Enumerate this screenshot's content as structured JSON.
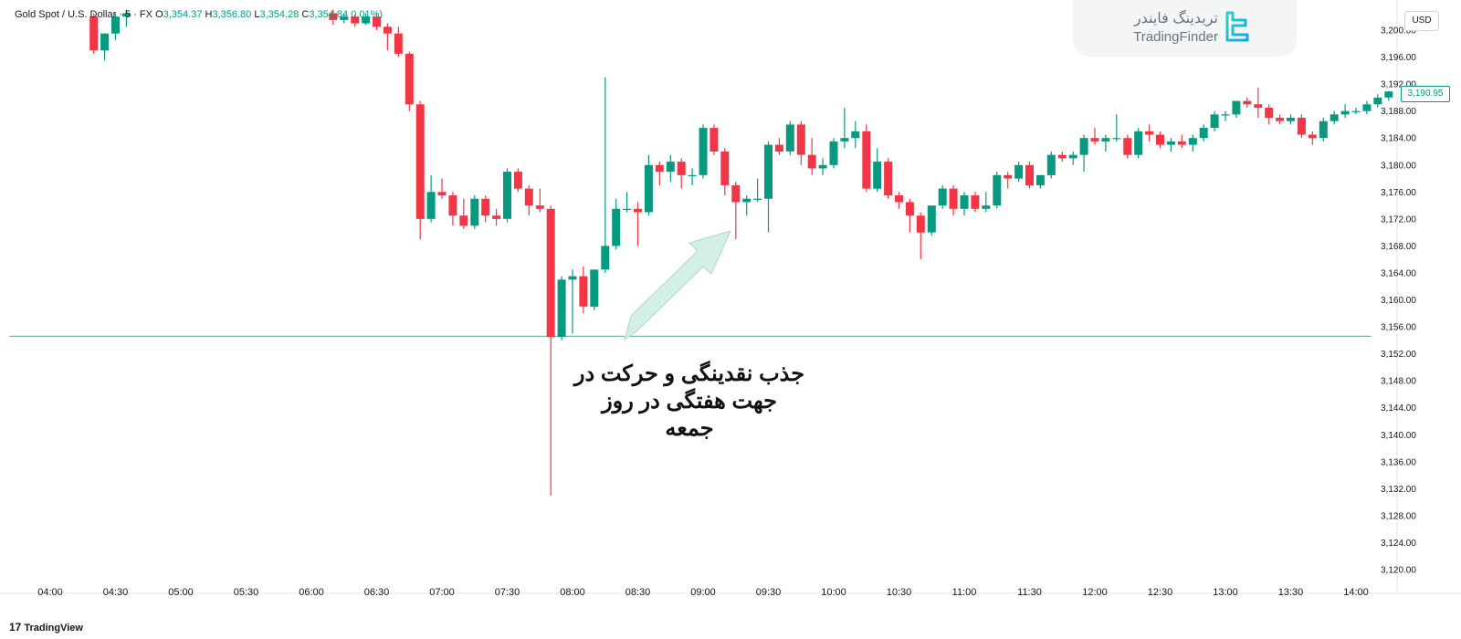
{
  "legend": {
    "symbol": "Gold Spot / U.S. Dollar · 5 · FX",
    "open_label": "O",
    "open": "3,354.37",
    "high_label": "H",
    "high": "3,356.80",
    "low_label": "L",
    "low": "3,354.28",
    "close_label": "C",
    "close": "3,354.84",
    "change": "0.01%)"
  },
  "logo": {
    "text_fa": "تریدینگ فایندر",
    "text_en": "TradingFinder"
  },
  "currency": "USD",
  "last_price": "3,190.95",
  "annotation": {
    "lines": [
      "جذب نقدینگی و حرکت در",
      "جهت هفتگی در روز",
      "جمعه"
    ]
  },
  "brand": {
    "mark": "17",
    "name": "TradingView"
  },
  "colors": {
    "up": "#089981",
    "down": "#f23645",
    "level_line": "#7fb8a4",
    "arrow": "#bfe5dc"
  },
  "chart_data": {
    "type": "candlestick",
    "symbol": "Gold Spot / U.S. Dollar",
    "interval": "5",
    "ylim": [
      3118,
      3202
    ],
    "y_ticks": [
      "3,120.00",
      "3,124.00",
      "3,128.00",
      "3,132.00",
      "3,136.00",
      "3,140.00",
      "3,144.00",
      "3,148.00",
      "3,152.00",
      "3,156.00",
      "3,160.00",
      "3,164.00",
      "3,168.00",
      "3,172.00",
      "3,176.00",
      "3,180.00",
      "3,184.00",
      "3,188.00",
      "3,192.00",
      "3,196.00",
      "3,200.00"
    ],
    "x_ticks": [
      "04:00",
      "04:30",
      "05:00",
      "05:30",
      "06:00",
      "06:30",
      "07:00",
      "07:30",
      "08:00",
      "08:30",
      "09:00",
      "09:30",
      "10:00",
      "10:30",
      "11:00",
      "11:30",
      "12:00",
      "12:30",
      "13:00",
      "13:30",
      "14:00"
    ],
    "horizontal_level": 3154.6,
    "candles": [
      {
        "t": "04:20",
        "o": 3202.0,
        "h": 3202.5,
        "l": 3196.5,
        "c": 3197.0
      },
      {
        "t": "04:25",
        "o": 3197.0,
        "h": 3199.5,
        "l": 3195.5,
        "c": 3199.5
      },
      {
        "t": "04:30",
        "o": 3199.5,
        "h": 3202.5,
        "l": 3198.5,
        "c": 3202.0
      },
      {
        "t": "04:35",
        "o": 3202.0,
        "h": 3203.0,
        "l": 3200.5,
        "c": 3202.5
      },
      {
        "t": "06:10",
        "o": 3202.5,
        "h": 3203.0,
        "l": 3200.8,
        "c": 3201.5
      },
      {
        "t": "06:15",
        "o": 3201.5,
        "h": 3202.5,
        "l": 3201.0,
        "c": 3202.0
      },
      {
        "t": "06:20",
        "o": 3202.0,
        "h": 3202.3,
        "l": 3200.5,
        "c": 3201.0
      },
      {
        "t": "06:25",
        "o": 3201.0,
        "h": 3202.5,
        "l": 3200.8,
        "c": 3202.0
      },
      {
        "t": "06:30",
        "o": 3202.0,
        "h": 3202.5,
        "l": 3200.0,
        "c": 3200.5
      },
      {
        "t": "06:35",
        "o": 3200.5,
        "h": 3201.0,
        "l": 3197.0,
        "c": 3199.5
      },
      {
        "t": "06:40",
        "o": 3199.5,
        "h": 3200.5,
        "l": 3196.0,
        "c": 3196.5
      },
      {
        "t": "06:45",
        "o": 3196.5,
        "h": 3196.8,
        "l": 3188.0,
        "c": 3189.0
      },
      {
        "t": "06:50",
        "o": 3189.0,
        "h": 3189.5,
        "l": 3169.0,
        "c": 3172.0
      },
      {
        "t": "06:55",
        "o": 3172.0,
        "h": 3178.5,
        "l": 3171.5,
        "c": 3176.0
      },
      {
        "t": "07:00",
        "o": 3176.0,
        "h": 3178.0,
        "l": 3175.0,
        "c": 3175.5
      },
      {
        "t": "07:05",
        "o": 3175.5,
        "h": 3176.0,
        "l": 3171.0,
        "c": 3172.5
      },
      {
        "t": "07:10",
        "o": 3172.5,
        "h": 3175.0,
        "l": 3170.5,
        "c": 3171.0
      },
      {
        "t": "07:15",
        "o": 3171.0,
        "h": 3175.5,
        "l": 3170.5,
        "c": 3175.0
      },
      {
        "t": "07:20",
        "o": 3175.0,
        "h": 3175.5,
        "l": 3171.5,
        "c": 3172.5
      },
      {
        "t": "07:25",
        "o": 3172.5,
        "h": 3173.5,
        "l": 3171.0,
        "c": 3172.0
      },
      {
        "t": "07:30",
        "o": 3172.0,
        "h": 3179.5,
        "l": 3171.5,
        "c": 3179.0
      },
      {
        "t": "07:35",
        "o": 3179.0,
        "h": 3179.5,
        "l": 3176.0,
        "c": 3176.5
      },
      {
        "t": "07:40",
        "o": 3176.5,
        "h": 3177.0,
        "l": 3172.5,
        "c": 3174.0
      },
      {
        "t": "07:45",
        "o": 3174.0,
        "h": 3176.5,
        "l": 3173.0,
        "c": 3173.5
      },
      {
        "t": "07:50",
        "o": 3173.5,
        "h": 3174.0,
        "l": 3131.0,
        "c": 3154.5
      },
      {
        "t": "07:55",
        "o": 3154.5,
        "h": 3163.5,
        "l": 3154.0,
        "c": 3163.0
      },
      {
        "t": "08:00",
        "o": 3163.0,
        "h": 3164.5,
        "l": 3155.0,
        "c": 3163.5
      },
      {
        "t": "08:05",
        "o": 3163.5,
        "h": 3165.0,
        "l": 3158.0,
        "c": 3159.0
      },
      {
        "t": "08:10",
        "o": 3159.0,
        "h": 3164.5,
        "l": 3158.5,
        "c": 3164.5
      },
      {
        "t": "08:15",
        "o": 3164.5,
        "h": 3193.0,
        "l": 3164.0,
        "c": 3168.0
      },
      {
        "t": "08:20",
        "o": 3168.0,
        "h": 3175.0,
        "l": 3167.5,
        "c": 3173.5
      },
      {
        "t": "08:25",
        "o": 3173.5,
        "h": 3176.0,
        "l": 3173.0,
        "c": 3173.5
      },
      {
        "t": "08:30",
        "o": 3173.5,
        "h": 3174.5,
        "l": 3168.0,
        "c": 3173.0
      },
      {
        "t": "08:35",
        "o": 3173.0,
        "h": 3181.5,
        "l": 3172.5,
        "c": 3180.0
      },
      {
        "t": "08:40",
        "o": 3180.0,
        "h": 3180.5,
        "l": 3177.0,
        "c": 3179.0
      },
      {
        "t": "08:45",
        "o": 3179.0,
        "h": 3181.5,
        "l": 3177.5,
        "c": 3180.5
      },
      {
        "t": "08:50",
        "o": 3180.5,
        "h": 3181.0,
        "l": 3176.5,
        "c": 3178.5
      },
      {
        "t": "08:55",
        "o": 3178.5,
        "h": 3179.5,
        "l": 3177.0,
        "c": 3178.5
      },
      {
        "t": "09:00",
        "o": 3178.5,
        "h": 3186.0,
        "l": 3178.0,
        "c": 3185.5
      },
      {
        "t": "09:05",
        "o": 3185.5,
        "h": 3186.0,
        "l": 3181.5,
        "c": 3182.0
      },
      {
        "t": "09:10",
        "o": 3182.0,
        "h": 3182.5,
        "l": 3175.5,
        "c": 3177.0
      },
      {
        "t": "09:15",
        "o": 3177.0,
        "h": 3177.5,
        "l": 3169.0,
        "c": 3174.5
      },
      {
        "t": "09:20",
        "o": 3174.5,
        "h": 3175.5,
        "l": 3172.5,
        "c": 3175.0
      },
      {
        "t": "09:25",
        "o": 3175.0,
        "h": 3178.0,
        "l": 3174.5,
        "c": 3175.0
      },
      {
        "t": "09:30",
        "o": 3175.0,
        "h": 3183.5,
        "l": 3170.0,
        "c": 3183.0
      },
      {
        "t": "09:35",
        "o": 3183.0,
        "h": 3184.0,
        "l": 3181.5,
        "c": 3182.0
      },
      {
        "t": "09:40",
        "o": 3182.0,
        "h": 3186.5,
        "l": 3181.5,
        "c": 3186.0
      },
      {
        "t": "09:45",
        "o": 3186.0,
        "h": 3186.5,
        "l": 3180.0,
        "c": 3181.5
      },
      {
        "t": "09:50",
        "o": 3181.5,
        "h": 3184.0,
        "l": 3178.5,
        "c": 3179.5
      },
      {
        "t": "09:55",
        "o": 3179.5,
        "h": 3181.0,
        "l": 3178.5,
        "c": 3180.0
      },
      {
        "t": "10:00",
        "o": 3180.0,
        "h": 3184.0,
        "l": 3179.5,
        "c": 3183.5
      },
      {
        "t": "10:05",
        "o": 3183.5,
        "h": 3188.5,
        "l": 3182.5,
        "c": 3184.0
      },
      {
        "t": "10:10",
        "o": 3184.0,
        "h": 3186.5,
        "l": 3182.5,
        "c": 3185.0
      },
      {
        "t": "10:15",
        "o": 3185.0,
        "h": 3186.0,
        "l": 3176.0,
        "c": 3176.5
      },
      {
        "t": "10:20",
        "o": 3176.5,
        "h": 3182.5,
        "l": 3176.0,
        "c": 3180.5
      },
      {
        "t": "10:25",
        "o": 3180.5,
        "h": 3181.0,
        "l": 3175.0,
        "c": 3175.5
      },
      {
        "t": "10:30",
        "o": 3175.5,
        "h": 3176.0,
        "l": 3173.5,
        "c": 3174.5
      },
      {
        "t": "10:35",
        "o": 3174.5,
        "h": 3175.0,
        "l": 3170.0,
        "c": 3172.5
      },
      {
        "t": "10:40",
        "o": 3172.5,
        "h": 3173.0,
        "l": 3166.0,
        "c": 3170.0
      },
      {
        "t": "10:45",
        "o": 3170.0,
        "h": 3174.0,
        "l": 3169.5,
        "c": 3174.0
      },
      {
        "t": "10:50",
        "o": 3174.0,
        "h": 3177.0,
        "l": 3173.5,
        "c": 3176.5
      },
      {
        "t": "10:55",
        "o": 3176.5,
        "h": 3177.0,
        "l": 3172.5,
        "c": 3173.5
      },
      {
        "t": "11:00",
        "o": 3173.5,
        "h": 3176.0,
        "l": 3172.5,
        "c": 3175.5
      },
      {
        "t": "11:05",
        "o": 3175.5,
        "h": 3176.0,
        "l": 3173.0,
        "c": 3173.5
      },
      {
        "t": "11:10",
        "o": 3173.5,
        "h": 3176.0,
        "l": 3173.0,
        "c": 3174.0
      },
      {
        "t": "11:15",
        "o": 3174.0,
        "h": 3179.0,
        "l": 3173.5,
        "c": 3178.5
      },
      {
        "t": "11:20",
        "o": 3178.5,
        "h": 3179.0,
        "l": 3176.5,
        "c": 3178.0
      },
      {
        "t": "11:25",
        "o": 3178.0,
        "h": 3180.5,
        "l": 3177.5,
        "c": 3180.0
      },
      {
        "t": "11:30",
        "o": 3180.0,
        "h": 3180.5,
        "l": 3176.5,
        "c": 3177.0
      },
      {
        "t": "11:35",
        "o": 3177.0,
        "h": 3178.5,
        "l": 3176.5,
        "c": 3178.5
      },
      {
        "t": "11:40",
        "o": 3178.5,
        "h": 3182.0,
        "l": 3178.0,
        "c": 3181.5
      },
      {
        "t": "11:45",
        "o": 3181.5,
        "h": 3182.0,
        "l": 3180.5,
        "c": 3181.0
      },
      {
        "t": "11:50",
        "o": 3181.0,
        "h": 3182.0,
        "l": 3180.0,
        "c": 3181.5
      },
      {
        "t": "11:55",
        "o": 3181.5,
        "h": 3184.5,
        "l": 3179.0,
        "c": 3184.0
      },
      {
        "t": "12:00",
        "o": 3184.0,
        "h": 3185.5,
        "l": 3183.0,
        "c": 3183.5
      },
      {
        "t": "12:05",
        "o": 3183.5,
        "h": 3184.5,
        "l": 3182.0,
        "c": 3184.0
      },
      {
        "t": "12:10",
        "o": 3184.0,
        "h": 3187.5,
        "l": 3183.5,
        "c": 3184.0
      },
      {
        "t": "12:15",
        "o": 3184.0,
        "h": 3184.5,
        "l": 3181.0,
        "c": 3181.5
      },
      {
        "t": "12:20",
        "o": 3181.5,
        "h": 3185.5,
        "l": 3181.0,
        "c": 3185.0
      },
      {
        "t": "12:25",
        "o": 3185.0,
        "h": 3186.0,
        "l": 3183.5,
        "c": 3184.5
      },
      {
        "t": "12:30",
        "o": 3184.5,
        "h": 3185.0,
        "l": 3182.5,
        "c": 3183.0
      },
      {
        "t": "12:35",
        "o": 3183.0,
        "h": 3184.0,
        "l": 3182.0,
        "c": 3183.5
      },
      {
        "t": "12:40",
        "o": 3183.5,
        "h": 3184.5,
        "l": 3182.5,
        "c": 3183.0
      },
      {
        "t": "12:45",
        "o": 3183.0,
        "h": 3184.5,
        "l": 3182.0,
        "c": 3184.0
      },
      {
        "t": "12:50",
        "o": 3184.0,
        "h": 3186.0,
        "l": 3183.5,
        "c": 3185.5
      },
      {
        "t": "12:55",
        "o": 3185.5,
        "h": 3188.0,
        "l": 3185.0,
        "c": 3187.5
      },
      {
        "t": "13:00",
        "o": 3187.5,
        "h": 3188.0,
        "l": 3186.5,
        "c": 3187.5
      },
      {
        "t": "13:05",
        "o": 3187.5,
        "h": 3189.5,
        "l": 3187.0,
        "c": 3189.5
      },
      {
        "t": "13:10",
        "o": 3189.5,
        "h": 3190.0,
        "l": 3188.5,
        "c": 3189.0
      },
      {
        "t": "13:15",
        "o": 3189.0,
        "h": 3191.5,
        "l": 3187.0,
        "c": 3188.5
      },
      {
        "t": "13:20",
        "o": 3188.5,
        "h": 3189.0,
        "l": 3186.0,
        "c": 3187.0
      },
      {
        "t": "13:25",
        "o": 3187.0,
        "h": 3187.5,
        "l": 3186.0,
        "c": 3186.5
      },
      {
        "t": "13:30",
        "o": 3186.5,
        "h": 3187.5,
        "l": 3186.0,
        "c": 3187.0
      },
      {
        "t": "13:35",
        "o": 3187.0,
        "h": 3187.5,
        "l": 3184.0,
        "c": 3184.5
      },
      {
        "t": "13:40",
        "o": 3184.5,
        "h": 3185.0,
        "l": 3183.0,
        "c": 3184.0
      },
      {
        "t": "13:45",
        "o": 3184.0,
        "h": 3187.0,
        "l": 3183.5,
        "c": 3186.5
      },
      {
        "t": "13:50",
        "o": 3186.5,
        "h": 3188.0,
        "l": 3186.0,
        "c": 3187.5
      },
      {
        "t": "13:55",
        "o": 3187.5,
        "h": 3189.0,
        "l": 3187.0,
        "c": 3188.0
      },
      {
        "t": "14:00",
        "o": 3188.0,
        "h": 3188.5,
        "l": 3187.5,
        "c": 3188.0
      },
      {
        "t": "14:05",
        "o": 3188.0,
        "h": 3189.5,
        "l": 3187.5,
        "c": 3189.0
      },
      {
        "t": "14:10",
        "o": 3189.0,
        "h": 3190.5,
        "l": 3188.5,
        "c": 3190.0
      },
      {
        "t": "14:15",
        "o": 3190.0,
        "h": 3191.0,
        "l": 3189.5,
        "c": 3190.9
      }
    ]
  }
}
